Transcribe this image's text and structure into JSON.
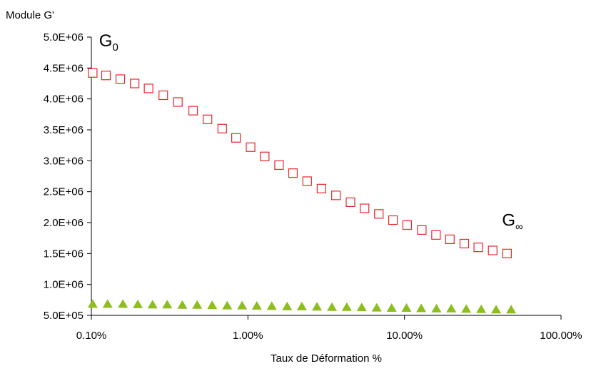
{
  "chart_data": {
    "type": "scatter",
    "title": "",
    "ylabel": "Module G'",
    "xlabel": "Taux de Déformation %",
    "xscale": "log",
    "xlim": [
      0.001,
      1.0
    ],
    "ylim": [
      500000,
      5000000
    ],
    "grid": false,
    "legend": "none",
    "xticks": [
      {
        "value": 0.001,
        "label": "0.10%"
      },
      {
        "value": 0.01,
        "label": "1.00%"
      },
      {
        "value": 0.1,
        "label": "10.00%"
      },
      {
        "value": 1.0,
        "label": "100.00%"
      }
    ],
    "yticks": [
      {
        "value": 500000,
        "label": "5.0E+05"
      },
      {
        "value": 1000000,
        "label": "1.0E+06"
      },
      {
        "value": 1500000,
        "label": "1.5E+06"
      },
      {
        "value": 2000000,
        "label": "2.0E+06"
      },
      {
        "value": 2500000,
        "label": "2.5E+06"
      },
      {
        "value": 3000000,
        "label": "3.0E+06"
      },
      {
        "value": 3500000,
        "label": "3.5E+06"
      },
      {
        "value": 4000000,
        "label": "4.0E+06"
      },
      {
        "value": 4500000,
        "label": "4.5E+06"
      },
      {
        "value": 5000000,
        "label": "5.0E+06"
      }
    ],
    "series": [
      {
        "marker": "square-open",
        "color": "#e8262a",
        "points": [
          {
            "x": 0.00102,
            "y": 4420000
          },
          {
            "x": 0.00124,
            "y": 4380000
          },
          {
            "x": 0.00153,
            "y": 4320000
          },
          {
            "x": 0.00189,
            "y": 4250000
          },
          {
            "x": 0.00232,
            "y": 4170000
          },
          {
            "x": 0.00288,
            "y": 4060000
          },
          {
            "x": 0.00357,
            "y": 3950000
          },
          {
            "x": 0.00447,
            "y": 3810000
          },
          {
            "x": 0.00552,
            "y": 3670000
          },
          {
            "x": 0.00685,
            "y": 3520000
          },
          {
            "x": 0.00839,
            "y": 3370000
          },
          {
            "x": 0.0104,
            "y": 3220000
          },
          {
            "x": 0.0128,
            "y": 3070000
          },
          {
            "x": 0.0158,
            "y": 2930000
          },
          {
            "x": 0.0194,
            "y": 2800000
          },
          {
            "x": 0.0239,
            "y": 2670000
          },
          {
            "x": 0.0295,
            "y": 2550000
          },
          {
            "x": 0.0365,
            "y": 2440000
          },
          {
            "x": 0.0452,
            "y": 2330000
          },
          {
            "x": 0.0556,
            "y": 2230000
          },
          {
            "x": 0.0686,
            "y": 2140000
          },
          {
            "x": 0.0845,
            "y": 2040000
          },
          {
            "x": 0.104,
            "y": 1960000
          },
          {
            "x": 0.129,
            "y": 1880000
          },
          {
            "x": 0.159,
            "y": 1800000
          },
          {
            "x": 0.195,
            "y": 1730000
          },
          {
            "x": 0.241,
            "y": 1660000
          },
          {
            "x": 0.296,
            "y": 1600000
          },
          {
            "x": 0.366,
            "y": 1550000
          },
          {
            "x": 0.452,
            "y": 1500000
          }
        ]
      },
      {
        "marker": "triangle-filled",
        "color": "#8cbe1e",
        "points": [
          {
            "x": 0.00102,
            "y": 680000
          },
          {
            "x": 0.00127,
            "y": 680000
          },
          {
            "x": 0.00159,
            "y": 680000
          },
          {
            "x": 0.00198,
            "y": 675000
          },
          {
            "x": 0.00246,
            "y": 670000
          },
          {
            "x": 0.00305,
            "y": 670000
          },
          {
            "x": 0.00381,
            "y": 665000
          },
          {
            "x": 0.00474,
            "y": 665000
          },
          {
            "x": 0.00591,
            "y": 660000
          },
          {
            "x": 0.00737,
            "y": 655000
          },
          {
            "x": 0.00918,
            "y": 655000
          },
          {
            "x": 0.0114,
            "y": 650000
          },
          {
            "x": 0.0142,
            "y": 645000
          },
          {
            "x": 0.0178,
            "y": 640000
          },
          {
            "x": 0.0221,
            "y": 640000
          },
          {
            "x": 0.0276,
            "y": 635000
          },
          {
            "x": 0.0344,
            "y": 630000
          },
          {
            "x": 0.0428,
            "y": 630000
          },
          {
            "x": 0.0533,
            "y": 625000
          },
          {
            "x": 0.0665,
            "y": 620000
          },
          {
            "x": 0.0828,
            "y": 615000
          },
          {
            "x": 0.103,
            "y": 615000
          },
          {
            "x": 0.128,
            "y": 610000
          },
          {
            "x": 0.16,
            "y": 605000
          },
          {
            "x": 0.199,
            "y": 605000
          },
          {
            "x": 0.248,
            "y": 600000
          },
          {
            "x": 0.309,
            "y": 595000
          },
          {
            "x": 0.385,
            "y": 590000
          },
          {
            "x": 0.48,
            "y": 590000
          }
        ]
      }
    ],
    "annotations": [
      {
        "id": "g0",
        "base": "G",
        "sub": "0",
        "x": 0.00112,
        "y": 4850000
      },
      {
        "id": "ginf",
        "base": "G",
        "sub": "∞",
        "x": 0.42,
        "y": 1950000
      }
    ]
  }
}
